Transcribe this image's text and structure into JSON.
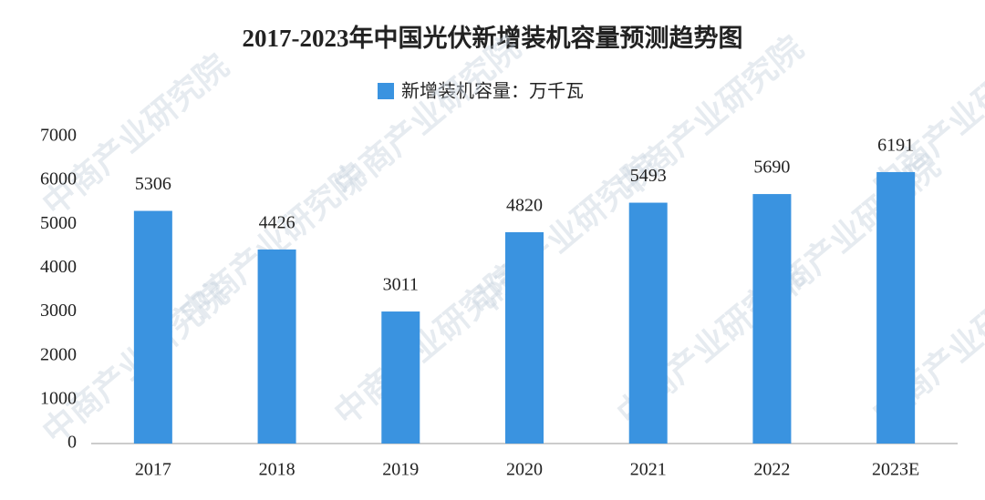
{
  "chart_data": {
    "type": "bar",
    "title": "2017-2023年中国光伏新增装机容量预测趋势图",
    "legend": "新增装机容量：万千瓦",
    "categories": [
      "2017",
      "2018",
      "2019",
      "2020",
      "2021",
      "2022",
      "2023E"
    ],
    "values": [
      5306,
      4426,
      3011,
      4820,
      5493,
      5690,
      6191
    ],
    "color": "#3a93e0",
    "ylim": [
      0,
      7000
    ],
    "yticks": [
      0,
      1000,
      2000,
      3000,
      4000,
      5000,
      6000,
      7000
    ],
    "grid": false
  },
  "watermark": "中商产业研究院"
}
